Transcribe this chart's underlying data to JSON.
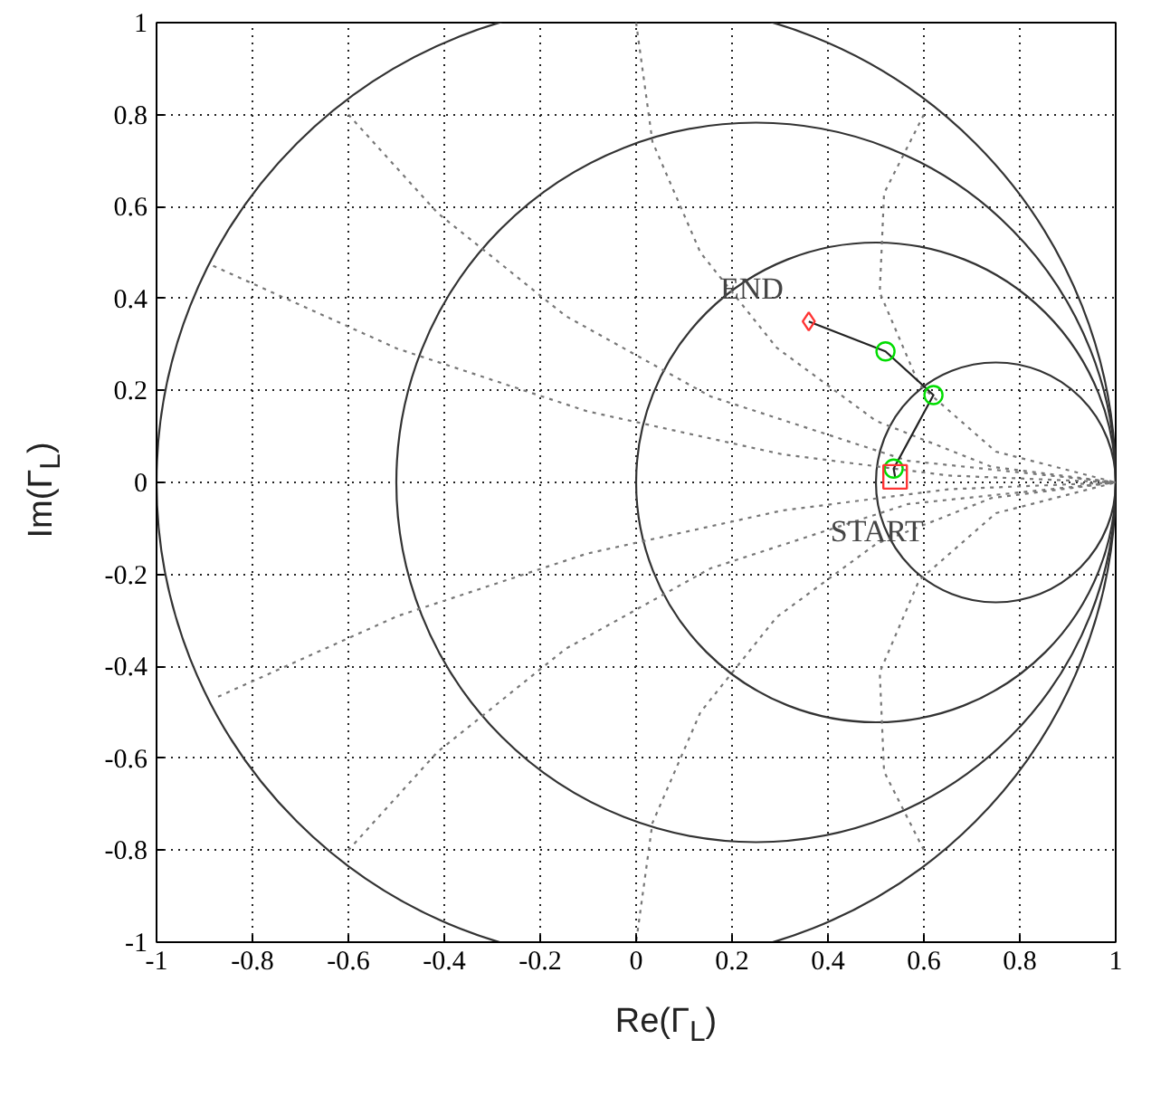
{
  "chart_data": {
    "type": "line",
    "xlabel": "Re(Γ$_{L}$)",
    "ylabel": "Im(Γ$_{L}$)",
    "xlim": [
      -1,
      1
    ],
    "ylim": [
      -1,
      1
    ],
    "xticks": [
      -1,
      -0.8,
      -0.6,
      -0.4,
      -0.2,
      0,
      0.2,
      0.4,
      0.6,
      0.8,
      1
    ],
    "yticks": [
      -1,
      -0.8,
      -0.6,
      -0.4,
      -0.2,
      0,
      0.2,
      0.4,
      0.6,
      0.8,
      1
    ],
    "grid": true,
    "series": [
      {
        "color": "#777777",
        "line_style": "dotted",
        "x": [
          -0.882,
          -0.498,
          -0.103,
          0.305,
          0.651,
          1,
          0.651,
          0.305,
          -0.103,
          -0.498,
          -0.882
        ],
        "values": [
          0.471,
          0.291,
          0.155,
          0.061,
          0.015,
          0,
          -0.015,
          -0.061,
          -0.155,
          -0.291,
          -0.471
        ]
      },
      {
        "color": "#777777",
        "line_style": "dotted",
        "x": [
          -0.6,
          -0.414,
          -0.147,
          0.155,
          0.567,
          1,
          0.567,
          0.155,
          -0.147,
          -0.414,
          -0.6
        ],
        "values": [
          0.8,
          0.586,
          0.362,
          0.187,
          0.047,
          0,
          -0.047,
          -0.187,
          -0.362,
          -0.586,
          -0.8
        ]
      },
      {
        "color": "#777777",
        "line_style": "dotted",
        "x": [
          0,
          0.034,
          0.134,
          0.293,
          0.5,
          0.741,
          1,
          0.741,
          0.5,
          0.293,
          0.134,
          0.034,
          0
        ],
        "values": [
          1,
          0.741,
          0.5,
          0.293,
          0.134,
          0.034,
          0,
          -0.034,
          -0.134,
          -0.293,
          -0.5,
          -0.741,
          -1
        ]
      },
      {
        "color": "#777777",
        "line_style": "dotted",
        "x": [
          0.6,
          0.517,
          0.508,
          0.59,
          0.75,
          1,
          0.75,
          0.59,
          0.508,
          0.517,
          0.6
        ],
        "values": [
          0.8,
          0.629,
          0.413,
          0.213,
          0.067,
          0,
          -0.067,
          -0.213,
          -0.413,
          -0.629,
          -0.8
        ]
      },
      {
        "color": "#222222",
        "line_style": "solid",
        "x": [
          0.54,
          0.537,
          0.62,
          0.52,
          0.36
        ],
        "values": [
          0.012,
          0.03,
          0.19,
          0.285,
          0.35
        ]
      },
      {
        "type": "scatter",
        "color": "#00dd00",
        "marker": "circle",
        "x": [
          0.537,
          0.62,
          0.52
        ],
        "values": [
          0.03,
          0.19,
          0.285
        ]
      },
      {
        "type": "scatter",
        "color": "#ff3333",
        "marker": "diamond",
        "x": [
          0.36
        ],
        "values": [
          0.35
        ]
      },
      {
        "type": "scatter",
        "color": "#ff3333",
        "marker": "square",
        "x": [
          0.54
        ],
        "values": [
          0.012
        ]
      }
    ],
    "annotations": [
      {
        "text": "END",
        "x": 0.36,
        "y": 0.35
      },
      {
        "text": "START",
        "x": 0.54,
        "y": 0.012
      }
    ]
  }
}
